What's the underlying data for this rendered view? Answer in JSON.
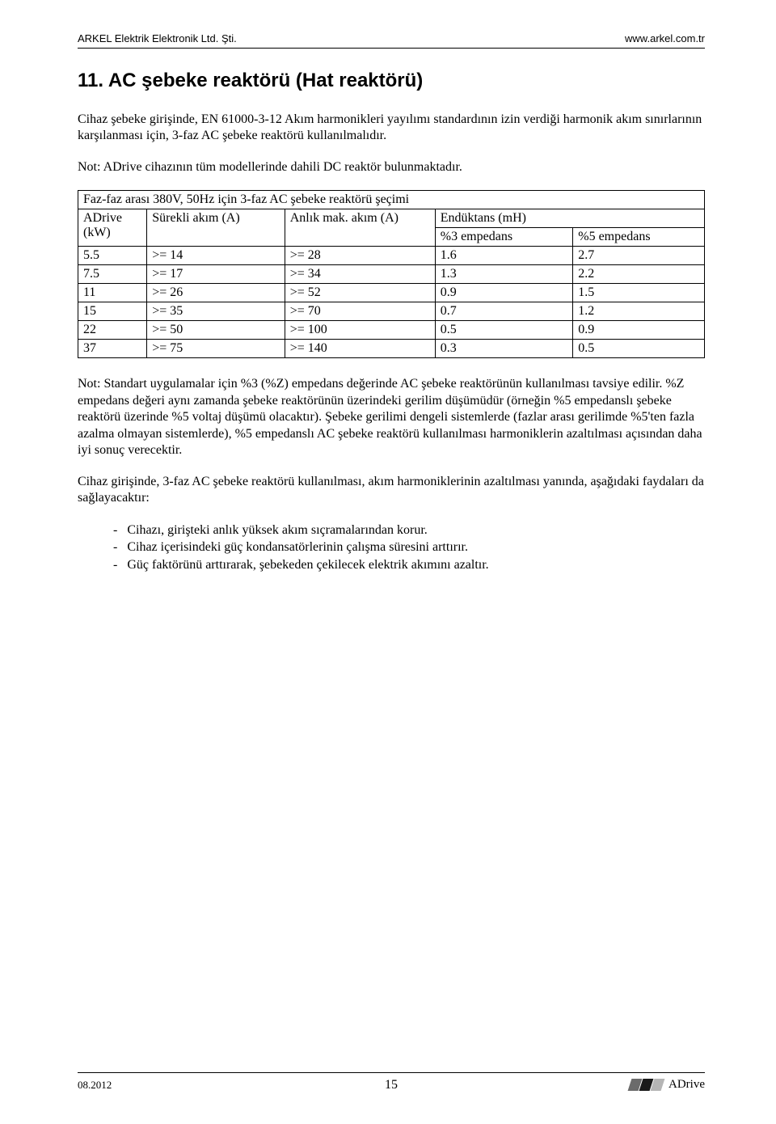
{
  "header": {
    "company": "ARKEL Elektrik Elektronik Ltd. Şti.",
    "website": "www.arkel.com.tr"
  },
  "section": {
    "title": "11. AC şebeke reaktörü (Hat reaktörü)",
    "p1": "Cihaz şebeke girişinde, EN 61000-3-12 Akım harmonikleri yayılımı standardının izin verdiği harmonik akım sınırlarının karşılanması için, 3-faz AC şebeke reaktörü kullanılmalıdır.",
    "p2": "Not: ADrive cihazının tüm modellerinde dahili DC reaktör bulunmaktadır.",
    "table": {
      "caption": "Faz-faz arası 380V, 50Hz için 3-faz AC şebeke reaktörü şeçimi",
      "h_kw_top": "ADrive",
      "h_kw_bot": "(kW)",
      "h_cont": "Sürekli akım (A)",
      "h_peak": "Anlık mak. akım (A)",
      "h_ind": "Endüktans (mH)",
      "h_3": "%3 empedans",
      "h_5": "%5 empedans",
      "rows": [
        {
          "kw": "5.5",
          "cont": ">= 14",
          "peak": ">= 28",
          "i3": "1.6",
          "i5": "2.7"
        },
        {
          "kw": "7.5",
          "cont": ">= 17",
          "peak": ">= 34",
          "i3": "1.3",
          "i5": "2.2"
        },
        {
          "kw": "11",
          "cont": ">= 26",
          "peak": ">= 52",
          "i3": "0.9",
          "i5": "1.5"
        },
        {
          "kw": "15",
          "cont": ">= 35",
          "peak": ">= 70",
          "i3": "0.7",
          "i5": "1.2"
        },
        {
          "kw": "22",
          "cont": ">= 50",
          "peak": ">= 100",
          "i3": "0.5",
          "i5": "0.9"
        },
        {
          "kw": "37",
          "cont": ">= 75",
          "peak": ">= 140",
          "i3": "0.3",
          "i5": "0.5"
        }
      ]
    },
    "p3": "Not: Standart uygulamalar için %3 (%Z) empedans değerinde AC şebeke reaktörünün kullanılması tavsiye edilir. %Z empedans değeri aynı zamanda şebeke reaktörünün üzerindeki gerilim düşümüdür (örneğin %5 empedanslı şebeke reaktörü üzerinde %5 voltaj düşümü olacaktır). Şebeke gerilimi dengeli sistemlerde (fazlar arası gerilimde %5'ten fazla azalma olmayan sistemlerde), %5 empedanslı AC şebeke reaktörü kullanılması harmoniklerin azaltılması açısından daha iyi sonuç verecektir.",
    "p4": "Cihaz girişinde, 3-faz AC şebeke reaktörü kullanılması, akım harmoniklerinin azaltılması yanında, aşağıdaki faydaları da sağlayacaktır:",
    "bullets": [
      "Cihazı, girişteki anlık yüksek akım sıçramalarından korur.",
      "Cihaz içerisindeki güç kondansatörlerinin çalışma süresini arttırır.",
      "Güç faktörünü arttırarak, şebekeden çekilecek elektrik akımını azaltır."
    ]
  },
  "footer": {
    "date": "08.2012",
    "page": "15",
    "product": "ADrive",
    "logo_colors": [
      "#6b6b6b",
      "#1a1a1a",
      "#b5b5b5"
    ]
  },
  "table_style": {
    "border_color": "#000000",
    "col_widths_pct": [
      11,
      22,
      24,
      22,
      21
    ]
  }
}
